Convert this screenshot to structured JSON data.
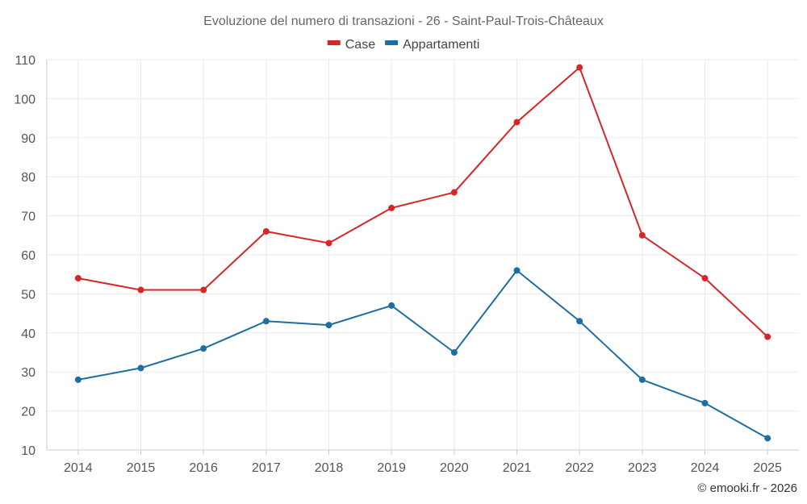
{
  "chart_data": {
    "type": "line",
    "title": "Evoluzione del numero di transazioni - 26 - Saint-Paul-Trois-Châteaux",
    "categories": [
      "2014",
      "2015",
      "2016",
      "2017",
      "2018",
      "2019",
      "2020",
      "2021",
      "2022",
      "2023",
      "2024",
      "2025"
    ],
    "series": [
      {
        "name": "Case",
        "color": "#d62728",
        "values": [
          54,
          51,
          51,
          66,
          63,
          72,
          76,
          94,
          108,
          65,
          54,
          39
        ]
      },
      {
        "name": "Appartamenti",
        "color": "#1f6ea3",
        "values": [
          28,
          31,
          36,
          43,
          42,
          47,
          35,
          56,
          43,
          28,
          22,
          13
        ]
      }
    ],
    "ylim": [
      10,
      110
    ],
    "yticks": [
      10,
      20,
      30,
      40,
      50,
      60,
      70,
      80,
      90,
      100,
      110
    ],
    "legend_position": "top-center",
    "grid": true,
    "xlabel": "",
    "ylabel": ""
  },
  "credit": "© emooki.fr - 2026"
}
